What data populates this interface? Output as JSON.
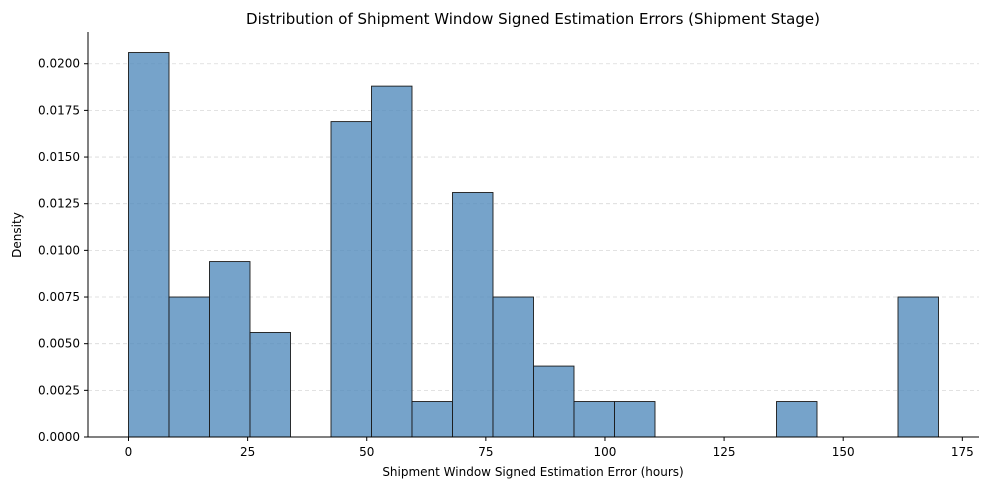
{
  "chart_data": {
    "type": "bar",
    "title": "Distribution of Shipment Window Signed Estimation Errors (Shipment Stage)",
    "xlabel": "Shipment Window Signed Estimation Error (hours)",
    "ylabel": "Density",
    "xlim": [
      -8.5,
      178.5
    ],
    "ylim": [
      0,
      0.0217
    ],
    "grid": "y-dashed",
    "x_ticks": [
      {
        "value": 0,
        "label": "0"
      },
      {
        "value": 25,
        "label": "25"
      },
      {
        "value": 50,
        "label": "50"
      },
      {
        "value": 75,
        "label": "75"
      },
      {
        "value": 100,
        "label": "100"
      },
      {
        "value": 125,
        "label": "125"
      },
      {
        "value": 150,
        "label": "150"
      },
      {
        "value": 175,
        "label": "175"
      }
    ],
    "y_ticks": [
      {
        "value": 0,
        "label": "0.0000"
      },
      {
        "value": 0.0025,
        "label": "0.0025"
      },
      {
        "value": 0.005,
        "label": "0.0050"
      },
      {
        "value": 0.0075,
        "label": "0.0075"
      },
      {
        "value": 0.01,
        "label": "0.0100"
      },
      {
        "value": 0.0125,
        "label": "0.0125"
      },
      {
        "value": 0.015,
        "label": "0.0150"
      },
      {
        "value": 0.0175,
        "label": "0.0175"
      },
      {
        "value": 0.02,
        "label": "0.0200"
      }
    ],
    "bins": [
      {
        "start": 0.0,
        "end": 8.5,
        "value": 0.0206
      },
      {
        "start": 8.5,
        "end": 17.0,
        "value": 0.0075
      },
      {
        "start": 17.0,
        "end": 25.5,
        "value": 0.0094
      },
      {
        "start": 25.5,
        "end": 34.0,
        "value": 0.0056
      },
      {
        "start": 34.0,
        "end": 42.5,
        "value": 0.0
      },
      {
        "start": 42.5,
        "end": 51.0,
        "value": 0.0169
      },
      {
        "start": 51.0,
        "end": 59.5,
        "value": 0.0188
      },
      {
        "start": 59.5,
        "end": 68.0,
        "value": 0.0019
      },
      {
        "start": 68.0,
        "end": 76.5,
        "value": 0.0131
      },
      {
        "start": 76.5,
        "end": 85.0,
        "value": 0.0075
      },
      {
        "start": 85.0,
        "end": 93.5,
        "value": 0.0038
      },
      {
        "start": 93.5,
        "end": 102.0,
        "value": 0.0019
      },
      {
        "start": 102.0,
        "end": 110.5,
        "value": 0.0019
      },
      {
        "start": 110.5,
        "end": 119.0,
        "value": 0.0
      },
      {
        "start": 119.0,
        "end": 127.5,
        "value": 0.0
      },
      {
        "start": 127.5,
        "end": 136.0,
        "value": 0.0
      },
      {
        "start": 136.0,
        "end": 144.5,
        "value": 0.0019
      },
      {
        "start": 144.5,
        "end": 153.0,
        "value": 0.0
      },
      {
        "start": 153.0,
        "end": 161.5,
        "value": 0.0
      },
      {
        "start": 161.5,
        "end": 170.0,
        "value": 0.0075
      }
    ],
    "colors": {
      "bar": "#4f89bb",
      "edge": "#1a1a1a"
    }
  }
}
